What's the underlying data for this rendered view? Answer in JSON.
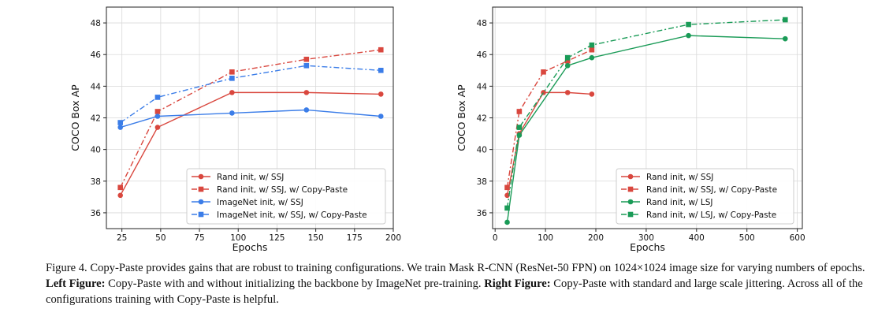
{
  "chart_data": [
    {
      "type": "line",
      "title": "",
      "xlabel": "Epochs",
      "ylabel": "COCO Box AP",
      "xlim": [
        15,
        200
      ],
      "ylim": [
        35,
        49
      ],
      "xticks": [
        25,
        50,
        75,
        100,
        125,
        150,
        175,
        200
      ],
      "yticks": [
        36,
        38,
        40,
        42,
        44,
        46,
        48
      ],
      "grid": true,
      "legend_position": "lower-right",
      "series": [
        {
          "name": "Rand init, w/ SSJ",
          "color": "#d9473e",
          "marker": "circle",
          "dash": "solid",
          "x": [
            24,
            48,
            96,
            144,
            192
          ],
          "y": [
            37.1,
            41.4,
            43.6,
            43.6,
            43.5
          ]
        },
        {
          "name": "Rand init, w/ SSJ, w/ Copy-Paste",
          "color": "#d9473e",
          "marker": "square",
          "dash": "dashdot",
          "x": [
            24,
            48,
            96,
            144,
            192
          ],
          "y": [
            37.6,
            42.4,
            44.9,
            45.7,
            46.3
          ]
        },
        {
          "name": "ImageNet init, w/ SSJ",
          "color": "#3b7de8",
          "marker": "circle",
          "dash": "solid",
          "x": [
            24,
            48,
            96,
            144,
            192
          ],
          "y": [
            41.4,
            42.1,
            42.3,
            42.5,
            42.1
          ]
        },
        {
          "name": "ImageNet init, w/ SSJ, w/ Copy-Paste",
          "color": "#3b7de8",
          "marker": "square",
          "dash": "dashdot",
          "x": [
            24,
            48,
            96,
            144,
            192
          ],
          "y": [
            41.7,
            43.3,
            44.5,
            45.3,
            45.0
          ]
        }
      ]
    },
    {
      "type": "line",
      "title": "",
      "xlabel": "Epochs",
      "ylabel": "COCO Box AP",
      "xlim": [
        -5,
        610
      ],
      "ylim": [
        35,
        49
      ],
      "xticks": [
        0,
        100,
        200,
        300,
        400,
        500,
        600
      ],
      "yticks": [
        36,
        38,
        40,
        42,
        44,
        46,
        48
      ],
      "grid": true,
      "legend_position": "lower-right",
      "series": [
        {
          "name": "Rand init, w/ SSJ",
          "color": "#d9473e",
          "marker": "circle",
          "dash": "solid",
          "x": [
            24,
            48,
            96,
            144,
            192
          ],
          "y": [
            37.1,
            41.0,
            43.6,
            43.6,
            43.5
          ]
        },
        {
          "name": "Rand init, w/ SSJ, w/ Copy-Paste",
          "color": "#d9473e",
          "marker": "square",
          "dash": "dashdot",
          "x": [
            24,
            48,
            96,
            144,
            192
          ],
          "y": [
            37.6,
            42.4,
            44.9,
            45.6,
            46.3
          ]
        },
        {
          "name": "Rand init, w/ LSJ",
          "color": "#1a9b57",
          "marker": "circle",
          "dash": "solid",
          "x": [
            24,
            48,
            144,
            192,
            384,
            576
          ],
          "y": [
            35.4,
            40.9,
            45.3,
            45.8,
            47.2,
            47.0
          ]
        },
        {
          "name": "Rand init, w/ LSJ, w/ Copy-Paste",
          "color": "#1a9b57",
          "marker": "square",
          "dash": "dashdot",
          "x": [
            24,
            48,
            144,
            192,
            384,
            576
          ],
          "y": [
            36.3,
            41.4,
            45.8,
            46.6,
            47.9,
            48.2
          ]
        }
      ]
    }
  ],
  "caption": {
    "p1": "Figure 4. Copy-Paste provides gains that are robust to training configurations. We train Mask R-CNN (ResNet-50 FPN) on 1024×1024 image size for varying numbers of epochs. ",
    "left_bold": "Left Figure:",
    "left_text": " Copy-Paste with and without initializing the backbone by ImageNet pre-training. ",
    "right_bold": "Right Figure:",
    "right_text": " Copy-Paste with standard and large scale jittering. Across all of the configurations training with Copy-Paste is helpful."
  }
}
